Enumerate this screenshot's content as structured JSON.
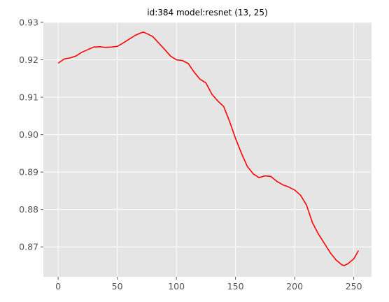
{
  "chart_data": {
    "type": "line",
    "title": "id:384 model:resnet (13, 25)",
    "xlabel": "",
    "ylabel": "",
    "xlim": [
      -12.5,
      265
    ],
    "ylim": [
      0.862,
      0.93
    ],
    "x_ticks": [
      0,
      50,
      100,
      150,
      200,
      250
    ],
    "x_tick_labels": [
      "0",
      "50",
      "100",
      "150",
      "200",
      "250"
    ],
    "y_ticks": [
      0.87,
      0.88,
      0.89,
      0.9,
      0.91,
      0.92,
      0.93
    ],
    "y_tick_labels": [
      "0.87",
      "0.88",
      "0.89",
      "0.90",
      "0.91",
      "0.92",
      "0.93"
    ],
    "grid": true,
    "background": "#e5e5e5",
    "grid_color": "#ffffff",
    "series": [
      {
        "color": "#ff0000",
        "x": [
          0,
          5,
          10,
          15,
          20,
          25,
          30,
          35,
          40,
          45,
          50,
          55,
          60,
          65,
          70,
          72,
          75,
          80,
          85,
          90,
          95,
          100,
          105,
          110,
          115,
          120,
          125,
          130,
          135,
          140,
          145,
          150,
          155,
          160,
          165,
          170,
          175,
          180,
          185,
          190,
          195,
          200,
          205,
          210,
          215,
          220,
          225,
          230,
          235,
          240,
          242,
          245,
          250,
          254
        ],
        "y": [
          0.9191,
          0.9202,
          0.9205,
          0.921,
          0.922,
          0.9227,
          0.9234,
          0.9235,
          0.9233,
          0.9234,
          0.9236,
          0.9245,
          0.9255,
          0.9265,
          0.9272,
          0.9274,
          0.927,
          0.9262,
          0.9245,
          0.9228,
          0.921,
          0.92,
          0.9198,
          0.919,
          0.9167,
          0.9148,
          0.9138,
          0.9108,
          0.909,
          0.9075,
          0.9035,
          0.899,
          0.895,
          0.8915,
          0.8895,
          0.8885,
          0.889,
          0.8888,
          0.8875,
          0.8866,
          0.886,
          0.8852,
          0.8838,
          0.8812,
          0.8765,
          0.8735,
          0.871,
          0.8685,
          0.8665,
          0.8652,
          0.865,
          0.8655,
          0.8668,
          0.869
        ]
      }
    ]
  }
}
